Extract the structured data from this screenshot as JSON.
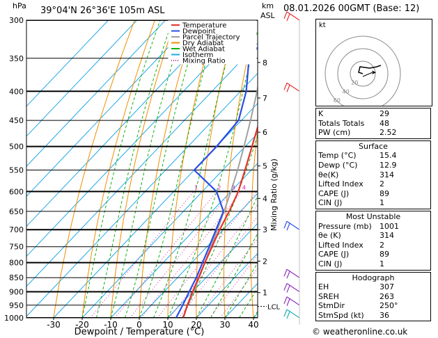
{
  "header": {
    "location": "39°04'N  26°36'E  105m  ASL",
    "pressure_unit": "hPa",
    "height_unit_km": "km",
    "height_unit_asl": "ASL",
    "datetime": "08.01.2026  00GMT  (Base: 12)"
  },
  "chart_data": {
    "type": "line",
    "title": "Skew-T log-P diagram",
    "xlabel": "Dewpoint / Temperature (°C)",
    "ylabel": "hPa",
    "right_axis_label": "Mixing Ratio (g/kg)",
    "pressure_levels": [
      300,
      350,
      400,
      450,
      500,
      550,
      600,
      650,
      700,
      750,
      800,
      850,
      900,
      950,
      1000
    ],
    "x_ticks": [
      -30,
      -20,
      -10,
      0,
      10,
      20,
      30,
      40
    ],
    "km_ticks": [
      {
        "km": "1",
        "p": 903
      },
      {
        "km": "2",
        "p": 795
      },
      {
        "km": "3",
        "p": 700
      },
      {
        "km": "4",
        "p": 617
      },
      {
        "km": "5",
        "p": 541
      },
      {
        "km": "6",
        "p": 472
      },
      {
        "km": "7",
        "p": 411
      },
      {
        "km": "8",
        "p": 356
      }
    ],
    "lcl_label": "LCL",
    "lcl_pressure": 955,
    "mixing_ratio_labels": [
      "1",
      "2",
      "3",
      "4",
      "6",
      "8",
      "10",
      "15",
      "20",
      "25"
    ],
    "legend": [
      {
        "name": "Temperature",
        "color": "#e8302a",
        "style": "solid"
      },
      {
        "name": "Dewpoint",
        "color": "#2a4de8",
        "style": "solid"
      },
      {
        "name": "Parcel Trajectory",
        "color": "#a0a0a0",
        "style": "solid"
      },
      {
        "name": "Dry Adiabat",
        "color": "#f08c00",
        "style": "solid"
      },
      {
        "name": "Wet Adiabat",
        "color": "#10b010",
        "style": "solid"
      },
      {
        "name": "Isotherm",
        "color": "#20a8e8",
        "style": "solid"
      },
      {
        "name": "Mixing Ratio",
        "color": "#d020a0",
        "style": "dotted"
      }
    ],
    "series": [
      {
        "name": "Temperature",
        "points": [
          [
            1000,
            15.4
          ],
          [
            950,
            12.6
          ],
          [
            900,
            10.0
          ],
          [
            850,
            7.4
          ],
          [
            800,
            4.6
          ],
          [
            750,
            1.8
          ],
          [
            700,
            -1.2
          ],
          [
            650,
            -4.0
          ],
          [
            600,
            -7.4
          ],
          [
            550,
            -12.2
          ],
          [
            500,
            -17.6
          ],
          [
            450,
            -23.6
          ],
          [
            400,
            -30.4
          ],
          [
            350,
            -38.6
          ],
          [
            300,
            -47.8
          ]
        ]
      },
      {
        "name": "Dewpoint",
        "points": [
          [
            1000,
            12.9
          ],
          [
            950,
            11.0
          ],
          [
            900,
            8.8
          ],
          [
            850,
            6.6
          ],
          [
            800,
            3.8
          ],
          [
            750,
            0.8
          ],
          [
            700,
            -2.5
          ],
          [
            650,
            -6.0
          ],
          [
            600,
            -15.0
          ],
          [
            550,
            -30.0
          ],
          [
            500,
            -30.0
          ],
          [
            450,
            -31.0
          ],
          [
            400,
            -38.0
          ],
          [
            350,
            -48.0
          ],
          [
            300,
            -50.0
          ]
        ]
      },
      {
        "name": "Parcel Trajectory",
        "points": [
          [
            1000,
            15.4
          ],
          [
            955,
            13.0
          ],
          [
            900,
            10.4
          ],
          [
            850,
            7.6
          ],
          [
            800,
            4.6
          ],
          [
            750,
            1.4
          ],
          [
            700,
            -2.0
          ],
          [
            650,
            -5.8
          ],
          [
            600,
            -10.0
          ],
          [
            550,
            -14.8
          ],
          [
            500,
            -20.4
          ],
          [
            450,
            -26.8
          ],
          [
            400,
            -34.2
          ],
          [
            350,
            -43.0
          ],
          [
            300,
            -53.0
          ]
        ]
      }
    ]
  },
  "hodograph": {
    "label": "kt",
    "ring_labels": [
      "20",
      "40",
      "60"
    ]
  },
  "indices": [
    {
      "label": "K",
      "value": "29"
    },
    {
      "label": "Totals Totals",
      "value": "48"
    },
    {
      "label": "PW (cm)",
      "value": "2.52"
    }
  ],
  "surface": {
    "title": "Surface",
    "rows": [
      {
        "label": "Temp (°C)",
        "value": "15.4"
      },
      {
        "label": "Dewp (°C)",
        "value": "12.9"
      },
      {
        "label": "θe(K)",
        "value": "314"
      },
      {
        "label": "Lifted Index",
        "value": "2"
      },
      {
        "label": "CAPE (J)",
        "value": "89"
      },
      {
        "label": "CIN (J)",
        "value": "1"
      }
    ]
  },
  "most_unstable": {
    "title": "Most Unstable",
    "rows": [
      {
        "label": "Pressure (mb)",
        "value": "1001"
      },
      {
        "label": "θe (K)",
        "value": "314"
      },
      {
        "label": "Lifted Index",
        "value": "2"
      },
      {
        "label": "CAPE (J)",
        "value": "89"
      },
      {
        "label": "CIN (J)",
        "value": "1"
      }
    ]
  },
  "hodograph_box": {
    "title": "Hodograph",
    "rows": [
      {
        "label": "EH",
        "value": "307"
      },
      {
        "label": "SREH",
        "value": "263"
      },
      {
        "label": "StmDir",
        "value": "250°"
      },
      {
        "label": "StmSpd (kt)",
        "value": "36"
      }
    ]
  },
  "footer": "© weatheronline.co.uk",
  "colors": {
    "temperature": "#e8302a",
    "dewpoint": "#2a4de8",
    "parcel": "#a0a0a0",
    "dry": "#f08c00",
    "wet": "#10b010",
    "isotherm": "#20a8e8",
    "mixing": "#d020a0"
  }
}
